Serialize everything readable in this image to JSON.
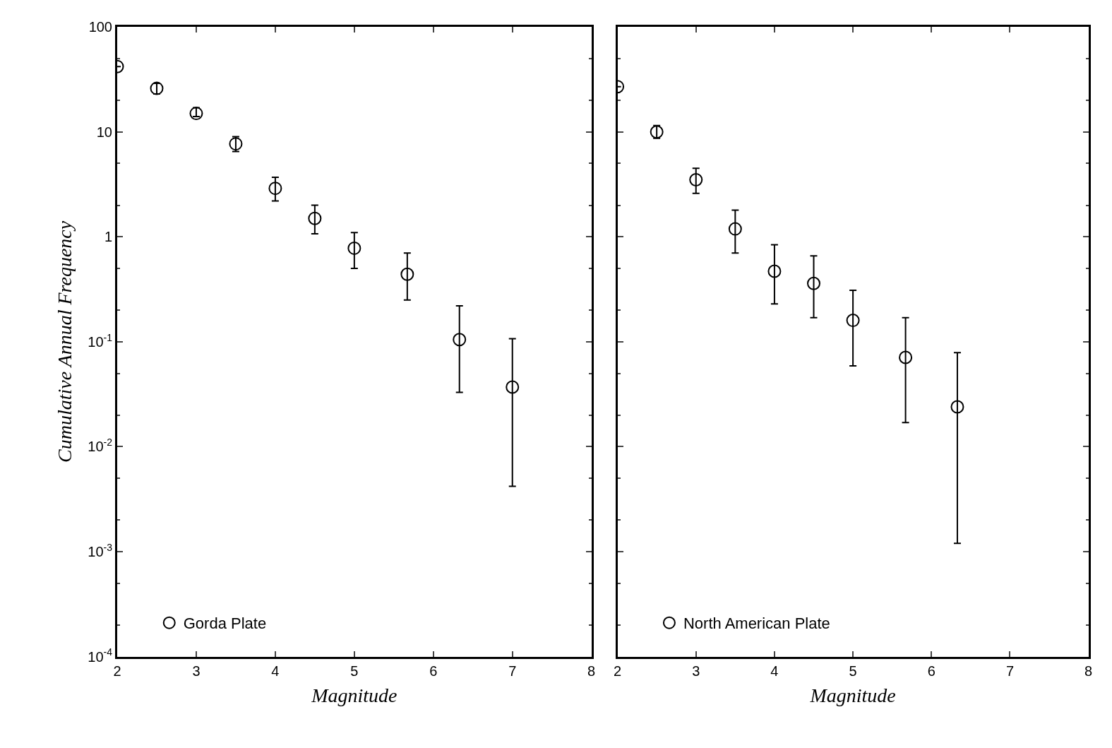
{
  "chart_data": [
    {
      "type": "scatter",
      "xlabel": "Magnitude",
      "ylabel": "Cumulative Annual Frequency",
      "log": "y",
      "marker": "circle",
      "legend": "bottom left",
      "xlim": [
        2,
        8
      ],
      "xticks": [
        2,
        3,
        4,
        5,
        6,
        7,
        8
      ],
      "ylim": [
        0.0001,
        100
      ],
      "yticks": [
        {
          "value": 0.0001,
          "label": "10$^{-4}$"
        },
        {
          "value": 0.001,
          "label": "10$^{-3}$"
        },
        {
          "value": 0.01,
          "label": "10$^{-2}$"
        },
        {
          "value": 0.1,
          "label": "10$^{-1}$"
        },
        1,
        10,
        100
      ],
      "x": [
        2,
        2.5,
        3,
        3.5,
        4,
        4.5,
        5,
        5.67,
        6.33,
        7
      ],
      "series": [
        {
          "name": "Gorda Plate",
          "color": "#000000",
          "values": [
            42,
            26,
            15,
            7.7,
            2.9,
            1.5,
            0.78,
            0.44,
            0.105,
            0.037
          ],
          "errors": [
            null,
            [
              23,
              29
            ],
            [
              14,
              17
            ],
            [
              6.5,
              9
            ],
            [
              2.2,
              3.7
            ],
            [
              1.07,
              2.0
            ],
            [
              0.5,
              1.1
            ],
            [
              0.25,
              0.7
            ],
            [
              0.033,
              0.22
            ],
            [
              0.0042,
              0.107
            ]
          ]
        }
      ]
    },
    {
      "type": "scatter",
      "xlabel": "Magnitude",
      "log": "y",
      "marker": "circle",
      "legend": "bottom left",
      "tick_labels": "x",
      "xlim": [
        2,
        8
      ],
      "xticks": [
        2,
        3,
        4,
        5,
        6,
        7,
        8
      ],
      "ylim": [
        0.0001,
        100
      ],
      "yticks": [
        {
          "value": 0.0001,
          "label": "10$^{-4}$"
        },
        {
          "value": 0.001,
          "label": "10$^{-3}$"
        },
        {
          "value": 0.01,
          "label": "10$^{-2}$"
        },
        {
          "value": 0.1,
          "label": "10$^{-1}$"
        },
        1,
        10,
        100
      ],
      "x": [
        2,
        2.5,
        3,
        3.5,
        4,
        4.5,
        5,
        5.67,
        6.33
      ],
      "series": [
        {
          "name": "North American Plate",
          "color": "#000000",
          "values": [
            27,
            10,
            3.5,
            1.19,
            0.47,
            0.36,
            0.16,
            0.071,
            0.024
          ],
          "errors": [
            null,
            [
              8.7,
              11.5
            ],
            [
              2.6,
              4.5
            ],
            [
              0.7,
              1.8
            ],
            [
              0.23,
              0.84
            ],
            [
              0.17,
              0.66
            ],
            [
              0.059,
              0.31
            ],
            [
              0.017,
              0.17
            ],
            [
              0.0012,
              0.079
            ]
          ]
        }
      ]
    }
  ]
}
